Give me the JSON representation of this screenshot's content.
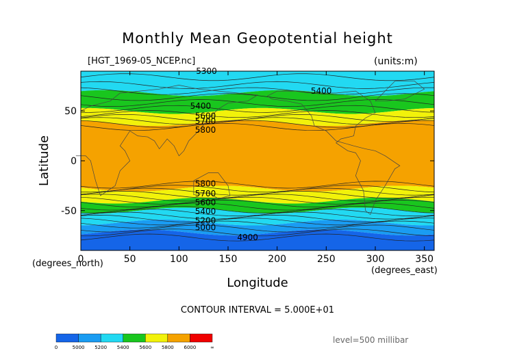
{
  "chart_data": {
    "type": "contour",
    "title": "Monthly Mean Geopotential height",
    "source_label": "[HGT_1969-05_NCEP.nc]",
    "units_label": "(units:m)",
    "xlabel": "Longitude",
    "ylabel": "Latitude",
    "x_units": "(degrees_east)",
    "y_units": "(degrees_north)",
    "xlim": [
      0,
      360
    ],
    "ylim": [
      -90,
      90
    ],
    "xticks": [
      0,
      50,
      100,
      150,
      200,
      250,
      300,
      350
    ],
    "yticks": [
      -50,
      0,
      50
    ],
    "contour_interval_text": "CONTOUR INTERVAL = 5.000E+01",
    "level_text": "level=500 millibar",
    "fill_bands": [
      {
        "from_lat": 90,
        "to_lat": 68,
        "color": "#22d9f2",
        "label": "5200-5400"
      },
      {
        "from_lat": 68,
        "to_lat": 50,
        "color": "#19c61e",
        "label": "5400-5600"
      },
      {
        "from_lat": 50,
        "to_lat": 38,
        "color": "#f2f20a",
        "label": "5600-5800"
      },
      {
        "from_lat": 38,
        "to_lat": -28,
        "color": "#f5a200",
        "label": "5800-6000"
      },
      {
        "from_lat": -28,
        "to_lat": -40,
        "color": "#f2f20a",
        "label": "5600-5800"
      },
      {
        "from_lat": -40,
        "to_lat": -50,
        "color": "#19c61e",
        "label": "5400-5600"
      },
      {
        "from_lat": -50,
        "to_lat": -62,
        "color": "#22d9f2",
        "label": "5200-5400"
      },
      {
        "from_lat": -62,
        "to_lat": -72,
        "color": "#1a9cf2",
        "label": "5000-5200"
      },
      {
        "from_lat": -72,
        "to_lat": -90,
        "color": "#1565e8",
        "label": "<5000"
      }
    ],
    "contour_labels": [
      {
        "text": "5300",
        "lon": 128,
        "lat": 90
      },
      {
        "text": "5400",
        "lon": 245,
        "lat": 70
      },
      {
        "text": "5400",
        "lon": 122,
        "lat": 55
      },
      {
        "text": "5600",
        "lon": 127,
        "lat": 45
      },
      {
        "text": "5700",
        "lon": 127,
        "lat": 40
      },
      {
        "text": "5800",
        "lon": 127,
        "lat": 31
      },
      {
        "text": "5800",
        "lon": 127,
        "lat": -23
      },
      {
        "text": "5700",
        "lon": 127,
        "lat": -33
      },
      {
        "text": "5600",
        "lon": 127,
        "lat": -42
      },
      {
        "text": "5400",
        "lon": 127,
        "lat": -51
      },
      {
        "text": "5200",
        "lon": 127,
        "lat": -60
      },
      {
        "text": "5000",
        "lon": 127,
        "lat": -67
      },
      {
        "text": "4900",
        "lon": 170,
        "lat": -77
      }
    ],
    "colorbar": {
      "colors": [
        "#1565e8",
        "#1a9cf2",
        "#22d9f2",
        "#19c61e",
        "#f2f20a",
        "#f5a200",
        "#f00000"
      ],
      "labels": [
        "0",
        "5000",
        "5200",
        "5400",
        "5600",
        "5800",
        "6000",
        "∞"
      ]
    }
  }
}
